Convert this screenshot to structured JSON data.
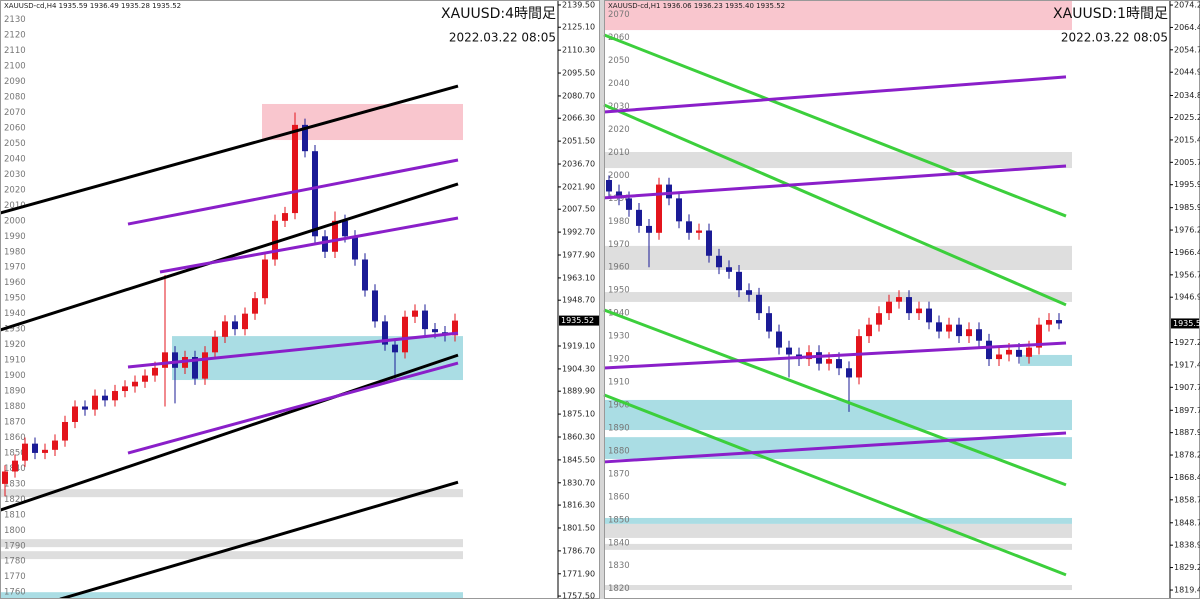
{
  "chart_data": [
    {
      "type": "candlestick",
      "header": "XAUUSD-cd,H4  1935.59 1936.49 1935.28 1935.52",
      "title": "XAUUSD:4時間足",
      "subtitle": "2022.03.22 08:05",
      "ylim": [
        1755.6,
        2142.7
      ],
      "xlim": [
        0,
        111.6
      ],
      "yticks": [
        {
          "value": 2139.5,
          "label": "2139.50"
        },
        {
          "value": 2125.1,
          "label": "2125.10"
        },
        {
          "value": 2110.3,
          "label": "2110.30"
        },
        {
          "value": 2095.5,
          "label": "2095.50"
        },
        {
          "value": 2080.7,
          "label": "2080.70"
        },
        {
          "value": 2066.3,
          "label": "2066.30"
        },
        {
          "value": 2051.5,
          "label": "2051.50"
        },
        {
          "value": 2036.7,
          "label": "2036.70"
        },
        {
          "value": 2021.9,
          "label": "2021.90"
        },
        {
          "value": 2007.5,
          "label": "2007.50"
        },
        {
          "value": 1992.7,
          "label": "1992.70"
        },
        {
          "value": 1977.9,
          "label": "1977.90"
        },
        {
          "value": 1963.1,
          "label": "1963.10"
        },
        {
          "value": 1948.7,
          "label": "1948.70"
        },
        {
          "value": 1919.1,
          "label": "1919.10"
        },
        {
          "value": 1904.3,
          "label": "1904.30"
        },
        {
          "value": 1889.9,
          "label": "1889.90"
        },
        {
          "value": 1875.1,
          "label": "1875.10"
        },
        {
          "value": 1860.3,
          "label": "1860.30"
        },
        {
          "value": 1845.5,
          "label": "1845.50"
        },
        {
          "value": 1830.7,
          "label": "1830.70"
        },
        {
          "value": 1816.3,
          "label": "1816.30"
        },
        {
          "value": 1801.5,
          "label": "1801.50"
        },
        {
          "value": 1786.7,
          "label": "1786.70"
        },
        {
          "value": 1771.9,
          "label": "1771.90"
        },
        {
          "value": 1757.5,
          "label": "1757.50"
        }
      ],
      "level_ticks": [
        2130,
        2120,
        2110,
        2100,
        2090,
        2080,
        2070,
        2060,
        2050,
        2040,
        2030,
        2020,
        2010,
        2000,
        1990,
        1980,
        1970,
        1960,
        1950,
        1940,
        1930,
        1920,
        1910,
        1900,
        1890,
        1880,
        1870,
        1860,
        1850,
        1840,
        1830,
        1820,
        1810,
        1800,
        1790,
        1780,
        1770,
        1760
      ],
      "up_color": "#e3141c",
      "down_color": "#1b1b96",
      "x": [
        1,
        3,
        5,
        7,
        9,
        11,
        13,
        15,
        17,
        19,
        21,
        23,
        25,
        27,
        29,
        31,
        33,
        35,
        37,
        39,
        41,
        43,
        45,
        47,
        49,
        51,
        53,
        55,
        57,
        59,
        61,
        63,
        65,
        67,
        69,
        71,
        73,
        75,
        77,
        79,
        81,
        83,
        85,
        87,
        89,
        91
      ],
      "open": [
        1830,
        1838,
        1845,
        1856,
        1850,
        1852,
        1858,
        1870,
        1880,
        1878,
        1887,
        1884,
        1890,
        1893,
        1896,
        1900,
        1905,
        1915,
        1905,
        1912,
        1898,
        1915,
        1925,
        1935,
        1930,
        1940,
        1950,
        1975,
        2000,
        2005,
        2062,
        2045,
        1990,
        1980,
        2000,
        1990,
        1975,
        1955,
        1935,
        1920,
        1915,
        1938,
        1942,
        1930,
        1928,
        1926
      ],
      "high": [
        1842,
        1849,
        1860,
        1860,
        1856,
        1862,
        1874,
        1884,
        1884,
        1891,
        1891,
        1894,
        1897,
        1900,
        1904,
        1909,
        1965,
        1919,
        1916,
        1916,
        1919,
        1929,
        1939,
        1939,
        1944,
        1954,
        1979,
        2004,
        2009,
        2070,
        2066,
        2049,
        1994,
        2006,
        2004,
        1994,
        1979,
        1959,
        1939,
        1924,
        1942,
        1946,
        1946,
        1934,
        1932,
        1940
      ],
      "low": [
        1822,
        1834,
        1841,
        1846,
        1846,
        1848,
        1854,
        1866,
        1874,
        1874,
        1880,
        1880,
        1886,
        1889,
        1892,
        1896,
        1880,
        1882,
        1901,
        1894,
        1894,
        1911,
        1921,
        1926,
        1926,
        1936,
        1946,
        1971,
        1996,
        2001,
        2041,
        1986,
        1976,
        1976,
        1986,
        1971,
        1951,
        1931,
        1916,
        1898,
        1911,
        1934,
        1926,
        1924,
        1922,
        1922
      ],
      "close": [
        1838,
        1845,
        1856,
        1850,
        1852,
        1858,
        1870,
        1880,
        1878,
        1887,
        1884,
        1890,
        1893,
        1896,
        1900,
        1905,
        1915,
        1905,
        1912,
        1898,
        1915,
        1925,
        1935,
        1930,
        1940,
        1950,
        1975,
        2000,
        2005,
        2062,
        2045,
        1990,
        1980,
        2000,
        1990,
        1975,
        1955,
        1935,
        1920,
        1915,
        1938,
        1942,
        1930,
        1928,
        1926,
        1935.52
      ],
      "last_price": 1935.52,
      "zones": [
        {
          "x": [
            52.4,
            92.6
          ],
          "y": [
            2052.2,
            2075.5
          ],
          "color": "#f9c6ce"
        },
        {
          "x": [
            34.4,
            92.6
          ],
          "y": [
            1897.1,
            1925.5
          ],
          "color": "#aadde4"
        },
        {
          "x": [
            0,
            92.6
          ],
          "y": [
            1821.4,
            1826.6
          ],
          "color": "#dedede"
        },
        {
          "x": [
            0,
            92.6
          ],
          "y": [
            1789.1,
            1794.3
          ],
          "color": "#dedede"
        },
        {
          "x": [
            0,
            92.6
          ],
          "y": [
            1781.4,
            1786.5
          ],
          "color": "#dedede"
        },
        {
          "x": [
            0,
            92.6
          ],
          "y": [
            1755.5,
            1760.0
          ],
          "color": "#aadde4"
        }
      ],
      "lines": [
        {
          "x": [
            0,
            91.6
          ],
          "y": [
            2005.0,
            2087.1
          ],
          "color": "#000000"
        },
        {
          "x": [
            0,
            91.6
          ],
          "y": [
            1929.4,
            2023.8
          ],
          "color": "#000000"
        },
        {
          "x": [
            0,
            91.6
          ],
          "y": [
            1813.0,
            1913.2
          ],
          "color": "#000000"
        },
        {
          "x": [
            12,
            91.6
          ],
          "y": [
            1755.5,
            1831.1
          ],
          "color": "#000000"
        },
        {
          "x": [
            25.6,
            91.6
          ],
          "y": [
            1997.9,
            2039.3
          ],
          "color": "#8a1fc9"
        },
        {
          "x": [
            32,
            91.6
          ],
          "y": [
            1966.9,
            2001.8
          ],
          "color": "#8a1fc9"
        },
        {
          "x": [
            25.6,
            91.6
          ],
          "y": [
            1905.5,
            1927.4
          ],
          "color": "#8a1fc9"
        },
        {
          "x": [
            25.6,
            91.6
          ],
          "y": [
            1849.9,
            1908.1
          ],
          "color": "#8a1fc9"
        }
      ]
    },
    {
      "type": "candlestick",
      "header": "XAUUSD-cd,H1  1936.06 1936.23 1935.40 1935.52",
      "title": "XAUUSD:1時間足",
      "subtitle": "2022.03.22 08:05",
      "ylim": [
        1815.5,
        2076.4
      ],
      "xlim": [
        0,
        113.2
      ],
      "yticks": [
        {
          "value": 2074.2,
          "label": "2074.20"
        },
        2064.45,
        {
          "value": 2054.7,
          "label": "2054.70"
        },
        2044.95,
        {
          "value": 2034.8,
          "label": "2034.80"
        },
        {
          "value": 2025.2,
          "label": "2025.20"
        },
        2015.45,
        {
          "value": 2005.7,
          "label": "2005.70"
        },
        1995.95,
        1985.95,
        {
          "value": 1976.2,
          "label": "1976.20"
        },
        1966.45,
        {
          "value": 1956.7,
          "label": "1956.70"
        },
        1946.95,
        {
          "value": 1927.2,
          "label": "1927.20"
        },
        1917.45,
        {
          "value": 1907.7,
          "label": "1907.70"
        },
        {
          "value": 1897.7,
          "label": "1897.70"
        },
        1887.95,
        {
          "value": 1878.2,
          "label": "1878.20"
        },
        1868.45,
        {
          "value": 1858.7,
          "label": "1858.70"
        },
        {
          "value": 1848.7,
          "label": "1848.70"
        },
        1838.95,
        {
          "value": 1829.2,
          "label": "1829.20"
        },
        {
          "value": 1819.4,
          "label": "1819.40"
        }
      ],
      "level_ticks": [
        2070,
        2060,
        2050,
        2040,
        2030,
        2020,
        2010,
        2000,
        1990,
        1980,
        1970,
        1960,
        1950,
        1940,
        1930,
        1920,
        1910,
        1900,
        1890,
        1880,
        1870,
        1860,
        1850,
        1840,
        1830,
        1820
      ],
      "up_color": "#e3141c",
      "down_color": "#1b1b96",
      "x": [
        1,
        3,
        5,
        7,
        9,
        11,
        13,
        15,
        17,
        19,
        21,
        23,
        25,
        27,
        29,
        31,
        33,
        35,
        37,
        39,
        41,
        43,
        45,
        47,
        49,
        51,
        53,
        55,
        57,
        59,
        61,
        63,
        65,
        67,
        69,
        71,
        73,
        75,
        77,
        79,
        81,
        83,
        85,
        87,
        89,
        91
      ],
      "open": [
        1998,
        1993,
        1990,
        1985,
        1978,
        1975,
        1996,
        1990,
        1980,
        1975,
        1976,
        1965,
        1960,
        1958,
        1950,
        1948,
        1940,
        1932,
        1925,
        1922,
        1920,
        1923,
        1918,
        1920,
        1916,
        1912,
        1930,
        1935,
        1940,
        1945,
        1947,
        1940,
        1942,
        1936,
        1932,
        1935,
        1930,
        1933,
        1928,
        1920,
        1922,
        1924,
        1921,
        1925,
        1935,
        1937
      ],
      "high": [
        2000,
        1996,
        1993,
        1988,
        1981,
        1999,
        1999,
        1993,
        1983,
        1979,
        1979,
        1968,
        1963,
        1961,
        1953,
        1951,
        1943,
        1935,
        1928,
        1925,
        1926,
        1926,
        1923,
        1923,
        1919,
        1933,
        1938,
        1943,
        1948,
        1950,
        1950,
        1945,
        1945,
        1939,
        1938,
        1938,
        1936,
        1936,
        1931,
        1925,
        1927,
        1927,
        1928,
        1938,
        1940,
        1940
      ],
      "low": [
        1990,
        1987,
        1982,
        1975,
        1960,
        1972,
        1987,
        1977,
        1972,
        1972,
        1962,
        1957,
        1955,
        1947,
        1945,
        1937,
        1929,
        1922,
        1912,
        1917,
        1917,
        1915,
        1915,
        1913,
        1897,
        1909,
        1927,
        1932,
        1937,
        1942,
        1937,
        1937,
        1933,
        1929,
        1929,
        1927,
        1927,
        1925,
        1917,
        1917,
        1919,
        1918,
        1918,
        1922,
        1932,
        1933
      ],
      "close": [
        1993,
        1990,
        1985,
        1978,
        1975,
        1996,
        1990,
        1980,
        1975,
        1976,
        1965,
        1960,
        1958,
        1950,
        1948,
        1940,
        1932,
        1925,
        1922,
        1920,
        1923,
        1918,
        1920,
        1916,
        1912,
        1930,
        1935,
        1940,
        1945,
        1947,
        1940,
        1942,
        1936,
        1932,
        1935,
        1930,
        1933,
        1928,
        1920,
        1922,
        1924,
        1921,
        1925,
        1935,
        1937,
        1935.52
      ],
      "last_price": 1935.52,
      "zones": [
        {
          "x": [
            0,
            93.6
          ],
          "y": [
            2063.3,
            2076.4
          ],
          "color": "#f9c6ce"
        },
        {
          "x": [
            0,
            93.6
          ],
          "y": [
            2003.2,
            2010.2
          ],
          "color": "#dedede"
        },
        {
          "x": [
            0,
            93.6
          ],
          "y": [
            1958.8,
            1969.3
          ],
          "color": "#dedede"
        },
        {
          "x": [
            0,
            93.6
          ],
          "y": [
            1944.9,
            1949.2
          ],
          "color": "#dedede"
        },
        {
          "x": [
            83.2,
            93.6
          ],
          "y": [
            1917.0,
            1921.8
          ],
          "color": "#aadde4"
        },
        {
          "x": [
            0,
            93.6
          ],
          "y": [
            1889.1,
            1902.2
          ],
          "color": "#aadde4"
        },
        {
          "x": [
            0,
            93.6
          ],
          "y": [
            1876.5,
            1886.0
          ],
          "color": "#aadde4"
        },
        {
          "x": [
            0,
            93.6
          ],
          "y": [
            1848.2,
            1850.8
          ],
          "color": "#aadde4"
        },
        {
          "x": [
            0,
            93.6
          ],
          "y": [
            1842.1,
            1848.2
          ],
          "color": "#dedede"
        },
        {
          "x": [
            0,
            93.6
          ],
          "y": [
            1836.9,
            1839.5
          ],
          "color": "#dedede"
        },
        {
          "x": [
            0,
            93.6
          ],
          "y": [
            1819.4,
            1821.6
          ],
          "color": "#dedede"
        }
      ],
      "lines": [
        {
          "x": [
            0,
            92.4
          ],
          "y": [
            2061.2,
            1982.3
          ],
          "color": "#3ccf3c"
        },
        {
          "x": [
            0,
            92.4
          ],
          "y": [
            2030.7,
            1943.6
          ],
          "color": "#3ccf3c"
        },
        {
          "x": [
            0,
            92.4
          ],
          "y": [
            1941.4,
            1865.2
          ],
          "color": "#3ccf3c"
        },
        {
          "x": [
            0,
            92.4
          ],
          "y": [
            1904.4,
            1826.0
          ],
          "color": "#3ccf3c"
        },
        {
          "x": [
            0,
            92.4
          ],
          "y": [
            2027.6,
            2042.9
          ],
          "color": "#8a1fc9"
        },
        {
          "x": [
            0,
            92.4
          ],
          "y": [
            1990.2,
            2004.1
          ],
          "color": "#8a1fc9"
        },
        {
          "x": [
            0,
            92.4
          ],
          "y": [
            1916.1,
            1927.0
          ],
          "color": "#8a1fc9"
        },
        {
          "x": [
            0,
            92.4
          ],
          "y": [
            1875.2,
            1887.8
          ],
          "color": "#8a1fc9"
        }
      ]
    }
  ]
}
